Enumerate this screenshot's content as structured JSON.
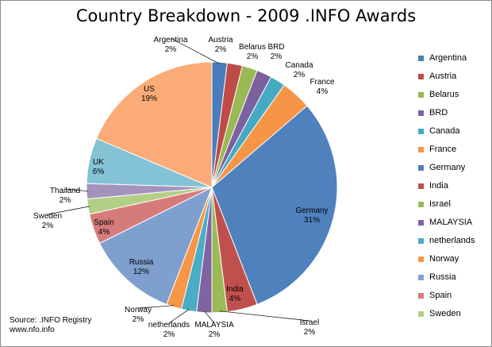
{
  "chart_data": {
    "type": "pie",
    "title": "Country Breakdown - 2009 .INFO Awards",
    "slices": [
      {
        "label": "Argentina",
        "value": 2,
        "color": "#4a7ebb"
      },
      {
        "label": "Austria",
        "value": 2,
        "color": "#be4b48"
      },
      {
        "label": "Belarus",
        "value": 2,
        "color": "#98b954"
      },
      {
        "label": "BRD",
        "value": 2,
        "color": "#7d60a0"
      },
      {
        "label": "Canada",
        "value": 2,
        "color": "#46aac5"
      },
      {
        "label": "France",
        "value": 4,
        "color": "#f69546"
      },
      {
        "label": "Germany",
        "value": 31,
        "color": "#4f81bd"
      },
      {
        "label": "India",
        "value": 4,
        "color": "#c0504d"
      },
      {
        "label": "Israel",
        "value": 2,
        "color": "#9bbb59"
      },
      {
        "label": "MALAYSIA",
        "value": 2,
        "color": "#8064a2"
      },
      {
        "label": "netherlands",
        "value": 2,
        "color": "#4bacc6"
      },
      {
        "label": "Norway",
        "value": 2,
        "color": "#f79646"
      },
      {
        "label": "Russia",
        "value": 12,
        "color": "#7f9fcf"
      },
      {
        "label": "Spain",
        "value": 4,
        "color": "#d67b7b"
      },
      {
        "label": "Sweden",
        "value": 2,
        "color": "#b3cf86"
      },
      {
        "label": "Thailand",
        "value": 2,
        "color": "#a393bd"
      },
      {
        "label": "UK",
        "value": 6,
        "color": "#84c2d6"
      },
      {
        "label": "US",
        "value": 19,
        "color": "#fbab78"
      }
    ],
    "legend": {
      "position": "right",
      "entries": [
        "Argentina",
        "Austria",
        "Belarus",
        "BRD",
        "Canada",
        "France",
        "Germany",
        "India",
        "Israel",
        "MALAYSIA",
        "netherlands",
        "Norway",
        "Russia",
        "Spain",
        "Sweden"
      ]
    },
    "value_suffix": "%"
  },
  "source": {
    "line1": "Source: .INFO Registry",
    "line2": "www.nfo.info"
  }
}
